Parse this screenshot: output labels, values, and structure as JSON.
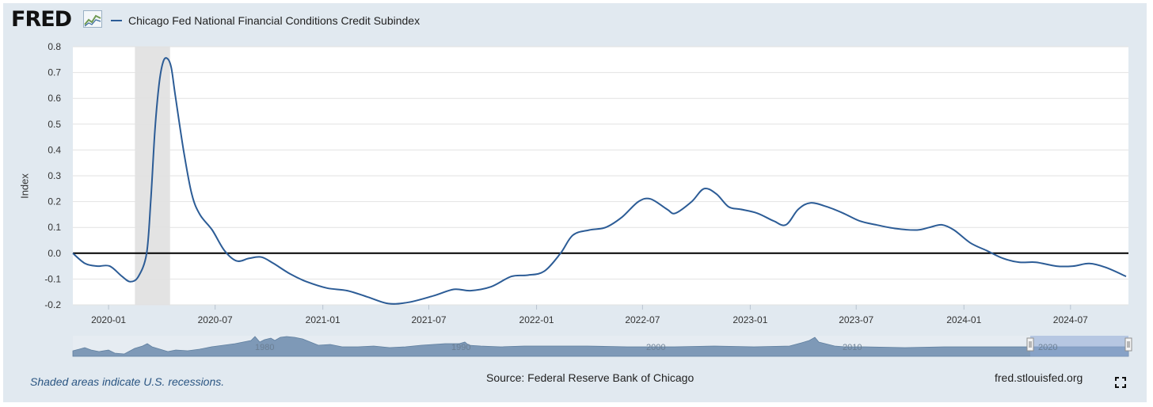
{
  "header": {
    "logo_text": "FRED",
    "logo_icon": "trend-chart-icon",
    "legend_label": "Chicago Fed National Financial Conditions Credit Subindex",
    "legend_color": "#2c5c96"
  },
  "footer": {
    "recession_note": "Shaded areas indicate U.S. recessions.",
    "source": "Source: Federal Reserve Bank of Chicago",
    "site": "fred.stlouisfed.org",
    "fullscreen_icon": "fullscreen-icon"
  },
  "navigator": {
    "labels": [
      "1980",
      "1990",
      "2000",
      "2010",
      "2020"
    ],
    "selection_start": "2019-11",
    "selection_end": "2024-10"
  },
  "chart_data": {
    "type": "line",
    "title": "",
    "xlabel": "",
    "ylabel": "Index",
    "ylim": [
      -0.2,
      0.8
    ],
    "yticks": [
      -0.2,
      -0.1,
      0.0,
      0.1,
      0.2,
      0.3,
      0.4,
      0.5,
      0.6,
      0.7,
      0.8
    ],
    "ytick_labels": [
      "-0.2",
      "-0.1",
      "0.0",
      "0.1",
      "0.2",
      "0.3",
      "0.4",
      "0.5",
      "0.6",
      "0.7",
      "0.8"
    ],
    "xlim": [
      "2019-11-01",
      "2024-10-08"
    ],
    "xticks": [
      "2020-01-01",
      "2020-07-01",
      "2021-01-01",
      "2021-07-01",
      "2022-01-01",
      "2022-07-01",
      "2023-01-01",
      "2023-07-01",
      "2024-01-01",
      "2024-07-01"
    ],
    "xtick_labels": [
      "2020-01",
      "2020-07",
      "2021-01",
      "2021-07",
      "2022-01",
      "2022-07",
      "2023-01",
      "2023-07",
      "2024-01",
      "2024-07"
    ],
    "grid": true,
    "zero_line": true,
    "recessions": [
      {
        "start": "2020-02-15",
        "end": "2020-04-15"
      }
    ],
    "series": [
      {
        "name": "Chicago Fed National Financial Conditions Credit Subindex",
        "color": "#2c5c96",
        "points": [
          [
            "2019-11-01",
            0.0
          ],
          [
            "2019-11-22",
            -0.04
          ],
          [
            "2019-12-13",
            -0.05
          ],
          [
            "2020-01-03",
            -0.05
          ],
          [
            "2020-01-24",
            -0.09
          ],
          [
            "2020-02-07",
            -0.11
          ],
          [
            "2020-02-21",
            -0.09
          ],
          [
            "2020-03-06",
            0.0
          ],
          [
            "2020-03-13",
            0.2
          ],
          [
            "2020-03-20",
            0.47
          ],
          [
            "2020-03-27",
            0.65
          ],
          [
            "2020-04-03",
            0.74
          ],
          [
            "2020-04-10",
            0.755
          ],
          [
            "2020-04-17",
            0.72
          ],
          [
            "2020-04-24",
            0.61
          ],
          [
            "2020-05-08",
            0.4
          ],
          [
            "2020-05-22",
            0.23
          ],
          [
            "2020-06-05",
            0.15
          ],
          [
            "2020-06-26",
            0.09
          ],
          [
            "2020-07-17",
            0.01
          ],
          [
            "2020-08-07",
            -0.03
          ],
          [
            "2020-08-28",
            -0.02
          ],
          [
            "2020-09-18",
            -0.015
          ],
          [
            "2020-10-09",
            -0.04
          ],
          [
            "2020-11-06",
            -0.08
          ],
          [
            "2020-12-04",
            -0.11
          ],
          [
            "2021-01-08",
            -0.135
          ],
          [
            "2021-02-12",
            -0.145
          ],
          [
            "2021-03-19",
            -0.17
          ],
          [
            "2021-04-23",
            -0.195
          ],
          [
            "2021-05-28",
            -0.19
          ],
          [
            "2021-07-09",
            -0.165
          ],
          [
            "2021-08-13",
            -0.14
          ],
          [
            "2021-09-10",
            -0.145
          ],
          [
            "2021-10-15",
            -0.13
          ],
          [
            "2021-11-19",
            -0.09
          ],
          [
            "2021-12-17",
            -0.085
          ],
          [
            "2022-01-14",
            -0.07
          ],
          [
            "2022-02-11",
            0.0
          ],
          [
            "2022-03-04",
            0.07
          ],
          [
            "2022-04-01",
            0.09
          ],
          [
            "2022-04-29",
            0.1
          ],
          [
            "2022-05-27",
            0.14
          ],
          [
            "2022-06-24",
            0.2
          ],
          [
            "2022-07-15",
            0.21
          ],
          [
            "2022-08-12",
            0.17
          ],
          [
            "2022-08-26",
            0.155
          ],
          [
            "2022-09-23",
            0.2
          ],
          [
            "2022-10-14",
            0.25
          ],
          [
            "2022-11-04",
            0.23
          ],
          [
            "2022-11-25",
            0.18
          ],
          [
            "2022-12-16",
            0.17
          ],
          [
            "2023-01-13",
            0.155
          ],
          [
            "2023-02-10",
            0.125
          ],
          [
            "2023-03-03",
            0.11
          ],
          [
            "2023-03-24",
            0.17
          ],
          [
            "2023-04-14",
            0.195
          ],
          [
            "2023-05-12",
            0.18
          ],
          [
            "2023-06-09",
            0.155
          ],
          [
            "2023-07-07",
            0.125
          ],
          [
            "2023-08-04",
            0.11
          ],
          [
            "2023-09-08",
            0.095
          ],
          [
            "2023-10-13",
            0.09
          ],
          [
            "2023-11-03",
            0.1
          ],
          [
            "2023-11-24",
            0.11
          ],
          [
            "2023-12-15",
            0.09
          ],
          [
            "2024-01-12",
            0.04
          ],
          [
            "2024-02-09",
            0.01
          ],
          [
            "2024-03-08",
            -0.02
          ],
          [
            "2024-04-05",
            -0.035
          ],
          [
            "2024-05-03",
            -0.035
          ],
          [
            "2024-06-07",
            -0.05
          ],
          [
            "2024-07-05",
            -0.05
          ],
          [
            "2024-08-02",
            -0.04
          ],
          [
            "2024-08-30",
            -0.055
          ],
          [
            "2024-10-04",
            -0.09
          ]
        ]
      }
    ]
  }
}
